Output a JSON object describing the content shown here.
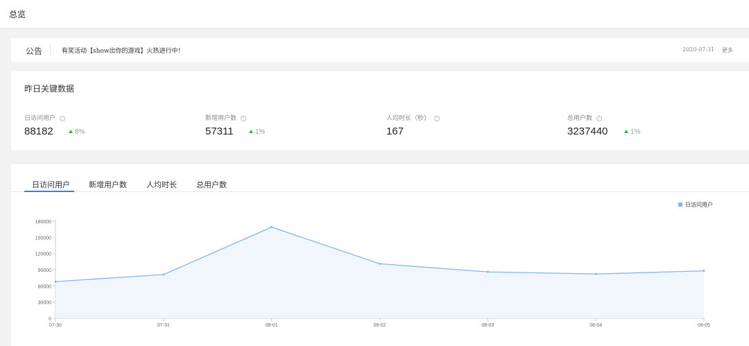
{
  "page": {
    "title": "总览"
  },
  "notice": {
    "label": "公告",
    "text": "有奖活动【show出你的游戏】火热进行中！",
    "date": "2020-07-31",
    "more": "更多"
  },
  "key_data": {
    "heading": "昨日关键数据",
    "stats": [
      {
        "label": "日访问用户",
        "value": "88182",
        "change": "8%"
      },
      {
        "label": "新增用户数",
        "value": "57311",
        "change": "1%"
      },
      {
        "label": "人均时长（秒）",
        "value": "167",
        "change": ""
      },
      {
        "label": "总用户数",
        "value": "3237440",
        "change": "1%"
      }
    ]
  },
  "tabs": [
    "日访问用户",
    "新增用户数",
    "人均时长",
    "总用户数"
  ],
  "colors": {
    "accent": "#3a7ee4",
    "line": "#86b4ef",
    "up": "#2db84d"
  },
  "chart_data": {
    "type": "area",
    "x": [
      "07-30",
      "07-31",
      "08-01",
      "08-02",
      "08-03",
      "08-04",
      "08-05"
    ],
    "series": [
      {
        "name": "日访问用户",
        "values": [
          68000,
          81000,
          169000,
          101000,
          86000,
          82000,
          88000
        ]
      }
    ],
    "yticks": [
      0,
      30000,
      60000,
      90000,
      120000,
      150000,
      180000
    ],
    "ylim": [
      0,
      180000
    ],
    "legend": "top-right",
    "grid": false
  }
}
